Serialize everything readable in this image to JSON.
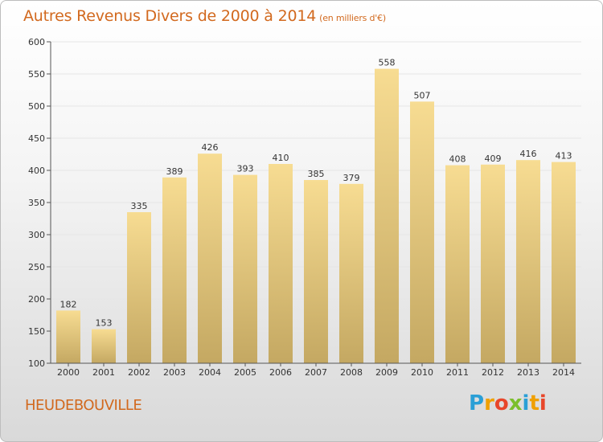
{
  "header": {
    "title": "Autres Revenus Divers de 2000 à 2014",
    "subtitle": "(en milliers d'€)"
  },
  "footer": {
    "commune": "HEUDEBOUVILLE",
    "brand_letters": [
      "P",
      "r",
      "o",
      "x",
      "i",
      "t",
      "i"
    ],
    "brand_colors": [
      "#2a9fd6",
      "#f0a000",
      "#e8462a",
      "#7cbf2c",
      "#2a9fd6",
      "#f0a000",
      "#e8462a"
    ]
  },
  "chart_data": {
    "type": "bar",
    "title": "Autres Revenus Divers de 2000 à 2014",
    "subtitle": "(en milliers d'€)",
    "xlabel": "",
    "ylabel": "",
    "categories": [
      "2000",
      "2001",
      "2002",
      "2003",
      "2004",
      "2005",
      "2006",
      "2007",
      "2008",
      "2009",
      "2010",
      "2011",
      "2012",
      "2013",
      "2014"
    ],
    "values": [
      182,
      153,
      335,
      389,
      426,
      393,
      410,
      385,
      379,
      558,
      507,
      408,
      409,
      416,
      413
    ],
    "ylim": [
      100,
      600
    ],
    "yticks": [
      100,
      150,
      200,
      250,
      300,
      350,
      400,
      450,
      500,
      550,
      600
    ],
    "grid": true,
    "data_labels": true,
    "colors": {
      "bar_top": "#f7dc92",
      "bar_bottom": "#c4a862",
      "grid": "#e6e6e6",
      "axis": "#555555",
      "title": "#d2691e"
    }
  }
}
